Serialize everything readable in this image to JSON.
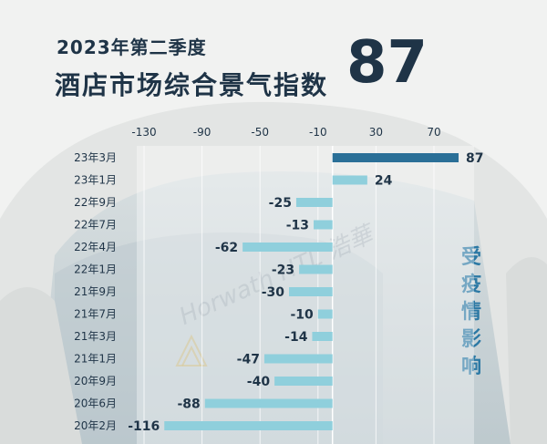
{
  "header": {
    "subtitle": "2023年第二季度",
    "title": "酒店市场综合景气指数",
    "big_value": "87"
  },
  "watermark": {
    "text": "Horwath HTL 浩華"
  },
  "side_note": {
    "chars": [
      "受",
      "疫",
      "情",
      "影",
      "响"
    ]
  },
  "colors": {
    "highlight_bar": "#2a6f97",
    "normal_bar": "#8fcfdc",
    "text_dark": "#1f3447",
    "side_note": "#2b78a4"
  },
  "chart_data": {
    "type": "bar",
    "orientation": "horizontal",
    "x_ticks": [
      -130,
      -90,
      -50,
      -10,
      30,
      70
    ],
    "xlim": [
      -145,
      95
    ],
    "grid": true,
    "categories": [
      "23年3月",
      "23年1月",
      "22年9月",
      "22年7月",
      "22年4月",
      "22年1月",
      "21年9月",
      "21年7月",
      "21年3月",
      "21年1月",
      "20年9月",
      "20年6月",
      "20年2月"
    ],
    "values": [
      87,
      24,
      -25,
      -13,
      -62,
      -23,
      -30,
      -10,
      -14,
      -47,
      -40,
      -88,
      -116
    ],
    "value_labels": [
      "87",
      "24",
      "-25",
      "-13",
      "-62",
      "-23",
      "-30",
      "-10",
      "-14",
      "-47",
      "-40",
      "-88",
      "-116"
    ],
    "highlight_index": 0
  }
}
